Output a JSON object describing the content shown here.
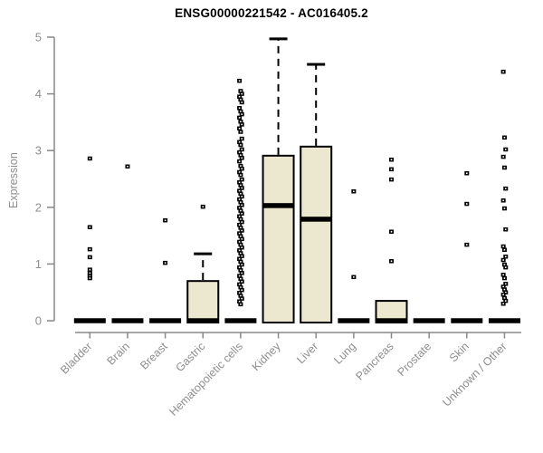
{
  "chart_data": {
    "type": "boxplot",
    "title": "ENSG00000221542 - AC016405.2",
    "ylabel": "Expression",
    "xlabel": "",
    "ylim": [
      0,
      5
    ],
    "yticks": [
      0,
      1,
      2,
      3,
      4,
      5
    ],
    "grid": false,
    "legend": false,
    "categories": [
      "Bladder",
      "Brain",
      "Breast",
      "Gastric",
      "Hematopoietic cells",
      "Kidney",
      "Liver",
      "Lung",
      "Pancreas",
      "Prostate",
      "Skin",
      "Unknown / Other"
    ],
    "series": [
      {
        "label": "Bladder",
        "q1": 0,
        "median": 0,
        "q3": 0,
        "whisker_low": 0,
        "whisker_high": 0,
        "outliers": [
          2.86,
          1.65,
          1.26,
          1.12,
          0.9,
          0.84,
          0.79,
          0.75
        ]
      },
      {
        "label": "Brain",
        "q1": 0,
        "median": 0,
        "q3": 0,
        "whisker_low": 0,
        "whisker_high": 0,
        "outliers": [
          2.72
        ]
      },
      {
        "label": "Breast",
        "q1": 0,
        "median": 0,
        "q3": 0,
        "whisker_low": 0,
        "whisker_high": 0,
        "outliers": [
          1.77,
          1.02
        ]
      },
      {
        "label": "Gastric",
        "q1": 0,
        "median": 0,
        "q3": 0.7,
        "whisker_low": 0,
        "whisker_high": 1.18,
        "outliers": [
          2.01
        ]
      },
      {
        "label": "Hematopoietic cells",
        "q1": 0,
        "median": 0,
        "q3": 0,
        "whisker_low": 0,
        "whisker_high": 0,
        "outliers": [
          4.23,
          4.05,
          4.0,
          3.95,
          3.9,
          3.85,
          3.75,
          3.69,
          3.64,
          3.58,
          3.51,
          3.46,
          3.39,
          3.33,
          3.21,
          3.15,
          3.1,
          3.02,
          2.97,
          2.92,
          2.87,
          2.81,
          2.73,
          2.68,
          2.62,
          2.57,
          2.49,
          2.44,
          2.39,
          2.34,
          2.29,
          2.24,
          2.19,
          2.14,
          2.09,
          2.04,
          1.99,
          1.94,
          1.89,
          1.84,
          1.79,
          1.74,
          1.69,
          1.64,
          1.59,
          1.54,
          1.49,
          1.44,
          1.39,
          1.34,
          1.29,
          1.24,
          1.19,
          1.14,
          1.09,
          1.04,
          0.99,
          0.94,
          0.89,
          0.84,
          0.79,
          0.74,
          0.69,
          0.64,
          0.59,
          0.54,
          0.49,
          0.44,
          0.39,
          0.34,
          0.29
        ]
      },
      {
        "label": "Kidney",
        "q1": 0,
        "median": 2.03,
        "q3": 2.91,
        "whisker_low": 0,
        "whisker_high": 4.97,
        "outliers": []
      },
      {
        "label": "Liver",
        "q1": 0,
        "median": 1.79,
        "q3": 3.07,
        "whisker_low": 0,
        "whisker_high": 4.52,
        "outliers": []
      },
      {
        "label": "Lung",
        "q1": 0,
        "median": 0,
        "q3": 0,
        "whisker_low": 0,
        "whisker_high": 0,
        "outliers": [
          2.28,
          0.77
        ]
      },
      {
        "label": "Pancreas",
        "q1": 0,
        "median": 0,
        "q3": 0.35,
        "whisker_low": 0,
        "whisker_high": 0.35,
        "outliers": [
          2.84,
          2.67,
          2.49,
          1.57,
          1.05
        ]
      },
      {
        "label": "Prostate",
        "q1": 0,
        "median": 0,
        "q3": 0,
        "whisker_low": 0,
        "whisker_high": 0,
        "outliers": []
      },
      {
        "label": "Skin",
        "q1": 0,
        "median": 0,
        "q3": 0,
        "whisker_low": 0,
        "whisker_high": 0,
        "outliers": [
          2.6,
          2.06,
          1.34
        ]
      },
      {
        "label": "Unknown / Other",
        "q1": 0,
        "median": 0,
        "q3": 0,
        "whisker_low": 0,
        "whisker_high": 0,
        "outliers": [
          4.39,
          3.23,
          3.02,
          2.89,
          2.7,
          2.33,
          2.12,
          1.98,
          1.61,
          1.31,
          1.25,
          1.13,
          1.07,
          0.99,
          0.94,
          0.81,
          0.75,
          0.65,
          0.6,
          0.55,
          0.5,
          0.46,
          0.4,
          0.35,
          0.3
        ]
      }
    ],
    "style": {
      "box_fill": "#ece7cf",
      "box_border": "#000000",
      "median_color": "#000000",
      "outlier_color": "#000000",
      "axis_color": "#898989",
      "tick_text_color": "#8e8e8e",
      "title_color": "#000000"
    }
  }
}
